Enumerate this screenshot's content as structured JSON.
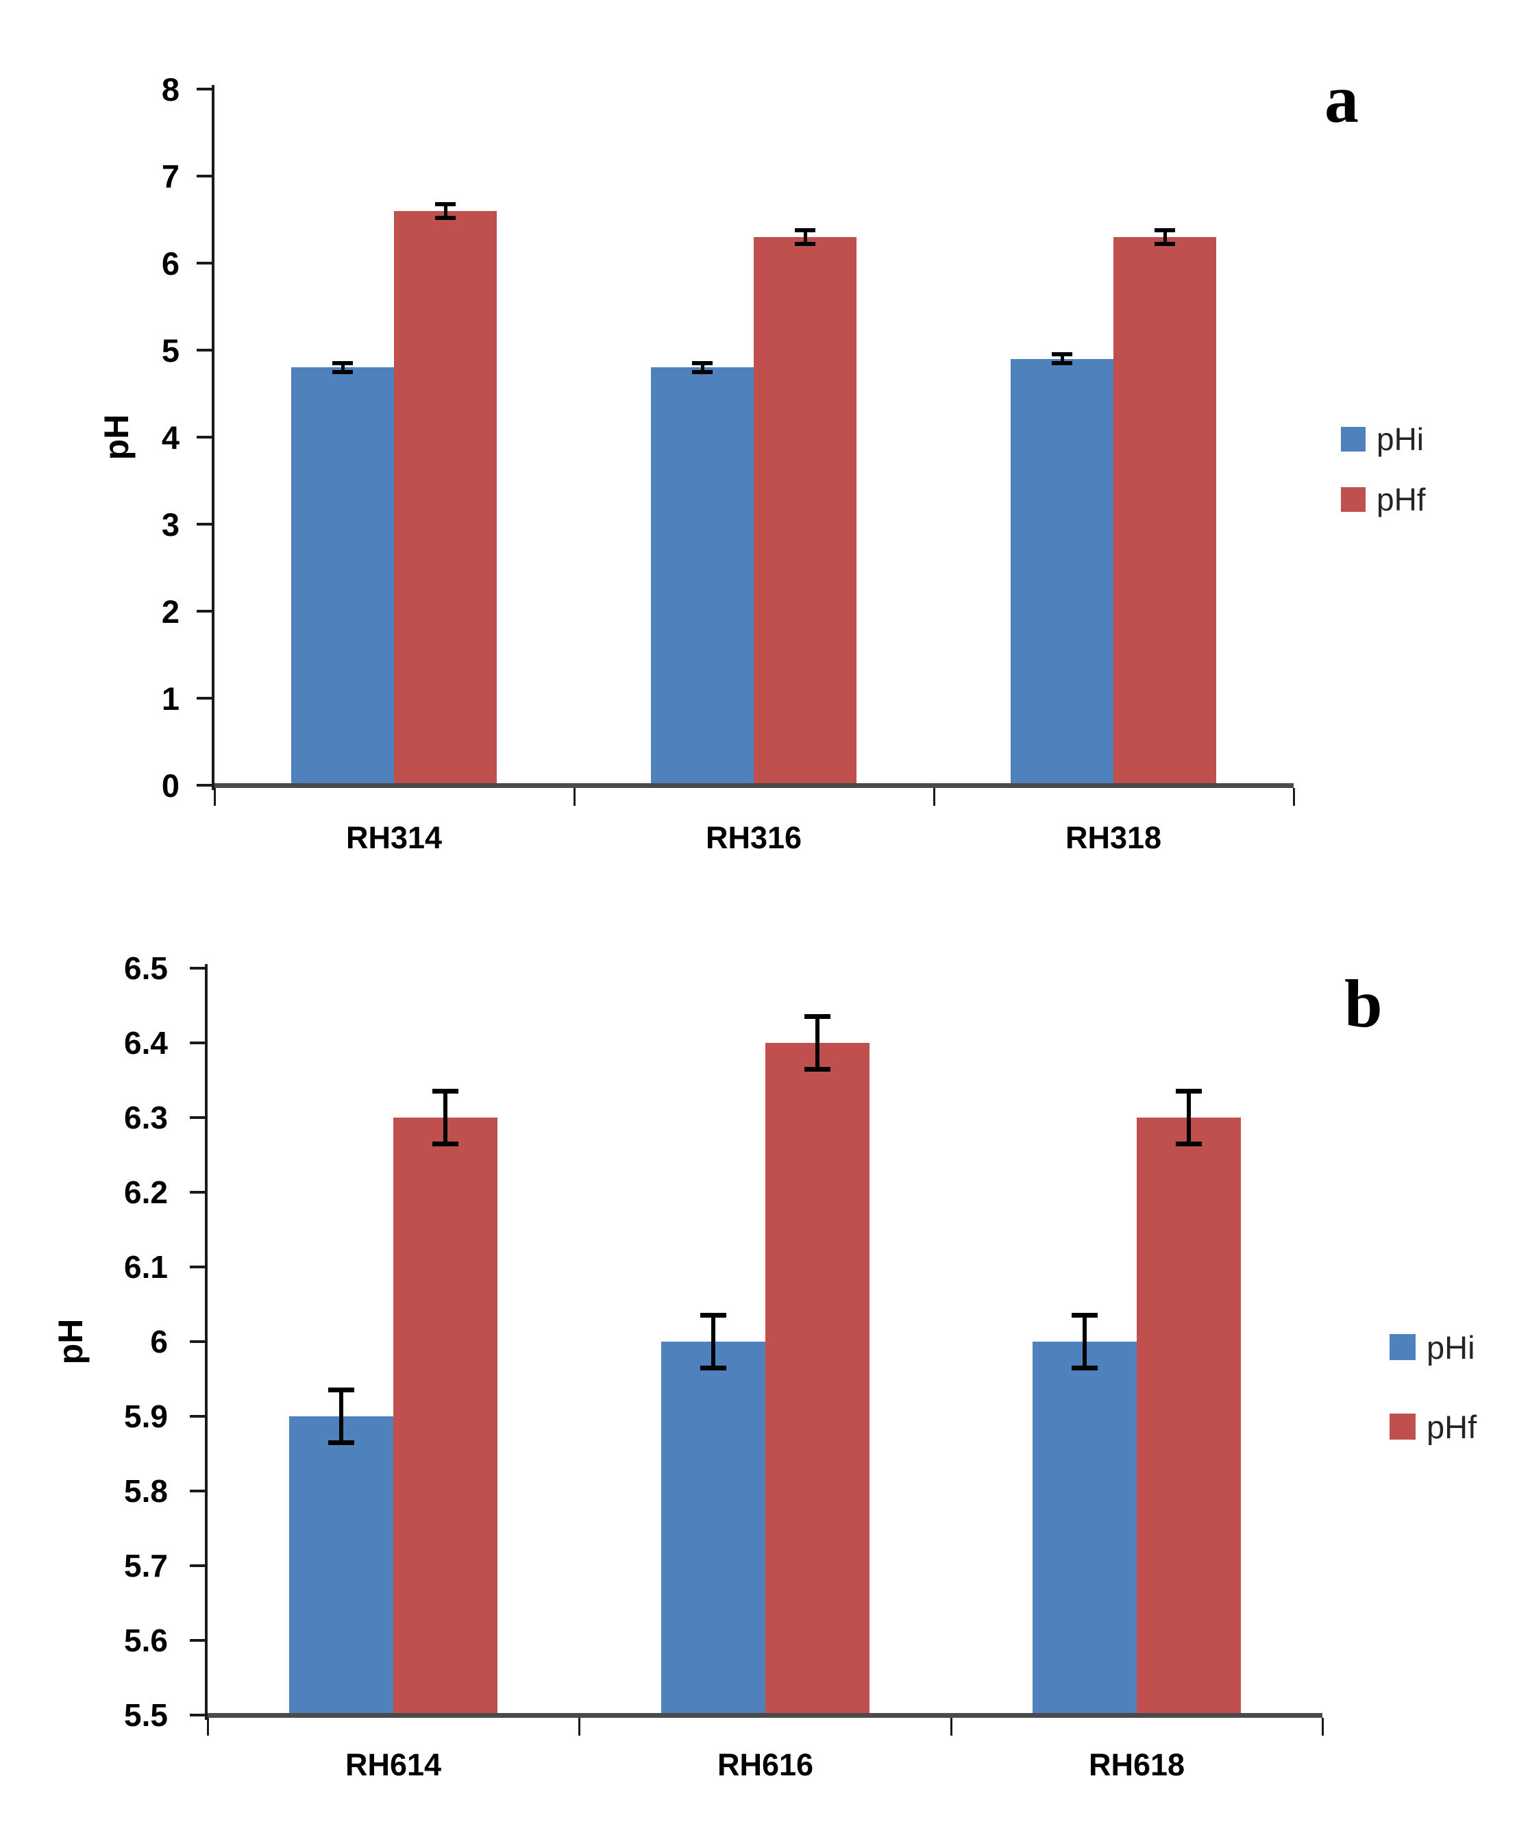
{
  "figure": {
    "background": "#ffffff",
    "description_visible_text_only": true
  },
  "colors": {
    "pHi": "#4f81bd",
    "pHf": "#c0504d",
    "axis": "#1a1a1a",
    "baseline": "#4a4a4a",
    "error_bar": "#000000",
    "text": "#000000",
    "legend_text": "#242424"
  },
  "chart_data": [
    {
      "type": "bar",
      "panel_label": "a",
      "title": "",
      "xlabel": "",
      "ylabel": "pH",
      "categories": [
        "RH314",
        "RH316",
        "RH318"
      ],
      "series": [
        {
          "name": "pHi",
          "values": [
            4.8,
            4.8,
            4.9
          ],
          "errors": [
            0.05,
            0.05,
            0.05
          ]
        },
        {
          "name": "pHf",
          "values": [
            6.6,
            6.3,
            6.3
          ],
          "errors": [
            0.08,
            0.08,
            0.08
          ]
        }
      ],
      "ylim": [
        0,
        8
      ],
      "ytick_step": 1,
      "ytick_labels": [
        "8",
        "7",
        "6",
        "5",
        "4",
        "3",
        "2",
        "1",
        "0"
      ],
      "legend": [
        "pHi",
        "pHf"
      ],
      "legend_position": "right",
      "grid": false,
      "error_bars": true
    },
    {
      "type": "bar",
      "panel_label": "b",
      "title": "",
      "xlabel": "",
      "ylabel": "pH",
      "categories": [
        "RH614",
        "RH616",
        "RH618"
      ],
      "series": [
        {
          "name": "pHi",
          "values": [
            5.9,
            6.0,
            6.0
          ],
          "errors": [
            0.035,
            0.035,
            0.035
          ]
        },
        {
          "name": "pHf",
          "values": [
            6.3,
            6.4,
            6.3
          ],
          "errors": [
            0.035,
            0.035,
            0.035
          ]
        }
      ],
      "ylim": [
        5.5,
        6.5
      ],
      "ytick_step": 0.1,
      "ytick_labels": [
        "6.5",
        "6.4",
        "6.3",
        "6.2",
        "6.1",
        "6",
        "5.9",
        "5.8",
        "5.7",
        "5.6",
        "5.5"
      ],
      "legend": [
        "pHi",
        "pHf"
      ],
      "legend_position": "right",
      "grid": false,
      "error_bars": true
    }
  ]
}
